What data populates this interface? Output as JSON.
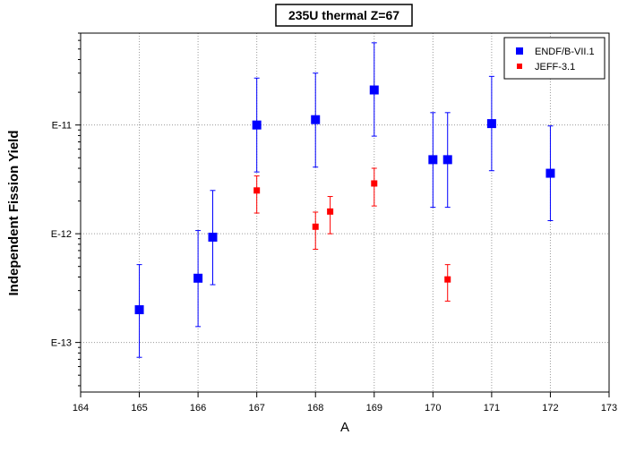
{
  "chart_data": {
    "type": "scatter",
    "title": "235U thermal Z=67",
    "xlabel": "A",
    "ylabel": "Independent Fission Yield",
    "xlim": [
      164,
      173
    ],
    "ylim": [
      3.5e-14,
      7e-11
    ],
    "yscale": "log",
    "grid": true,
    "legend_position": "top-right",
    "x_ticks": [
      164,
      165,
      166,
      167,
      168,
      169,
      170,
      171,
      172,
      173
    ],
    "x_tick_labels": [
      "164",
      "165",
      "166",
      "167",
      "168",
      "169",
      "170",
      "171",
      "172",
      "173"
    ],
    "y_ticks": [
      1e-13,
      1e-12,
      1e-11
    ],
    "y_tick_labels": [
      "E-13",
      "E-12",
      "E-11"
    ],
    "series": [
      {
        "name": "ENDF/B-VII.1",
        "color": "#0000ff",
        "marker": "square-large",
        "points": [
          {
            "x": 165,
            "y": 2e-13,
            "ylo": 7.3e-14,
            "yhi": 5.2e-13
          },
          {
            "x": 166,
            "y": 3.9e-13,
            "ylo": 1.4e-13,
            "yhi": 1.07e-12
          },
          {
            "x": 166.25,
            "y": 9.3e-13,
            "ylo": 3.4e-13,
            "yhi": 2.5e-12
          },
          {
            "x": 167,
            "y": 1e-11,
            "ylo": 3.7e-12,
            "yhi": 2.7e-11
          },
          {
            "x": 168,
            "y": 1.12e-11,
            "ylo": 4.1e-12,
            "yhi": 3e-11
          },
          {
            "x": 169,
            "y": 2.1e-11,
            "ylo": 7.9e-12,
            "yhi": 5.7e-11
          },
          {
            "x": 170,
            "y": 4.8e-12,
            "ylo": 1.75e-12,
            "yhi": 1.3e-11
          },
          {
            "x": 170.25,
            "y": 4.8e-12,
            "ylo": 1.75e-12,
            "yhi": 1.3e-11
          },
          {
            "x": 171,
            "y": 1.03e-11,
            "ylo": 3.8e-12,
            "yhi": 2.8e-11
          },
          {
            "x": 172,
            "y": 3.6e-12,
            "ylo": 1.32e-12,
            "yhi": 9.8e-12
          }
        ]
      },
      {
        "name": "JEFF-3.1",
        "color": "#ff0000",
        "marker": "square-small",
        "points": [
          {
            "x": 167,
            "y": 2.5e-12,
            "ylo": 1.55e-12,
            "yhi": 3.4e-12
          },
          {
            "x": 168,
            "y": 1.16e-12,
            "ylo": 7.2e-13,
            "yhi": 1.58e-12
          },
          {
            "x": 168.25,
            "y": 1.6e-12,
            "ylo": 1e-12,
            "yhi": 2.2e-12
          },
          {
            "x": 169,
            "y": 2.9e-12,
            "ylo": 1.8e-12,
            "yhi": 4e-12
          },
          {
            "x": 170.25,
            "y": 3.8e-13,
            "ylo": 2.4e-13,
            "yhi": 5.2e-13
          }
        ]
      }
    ]
  }
}
